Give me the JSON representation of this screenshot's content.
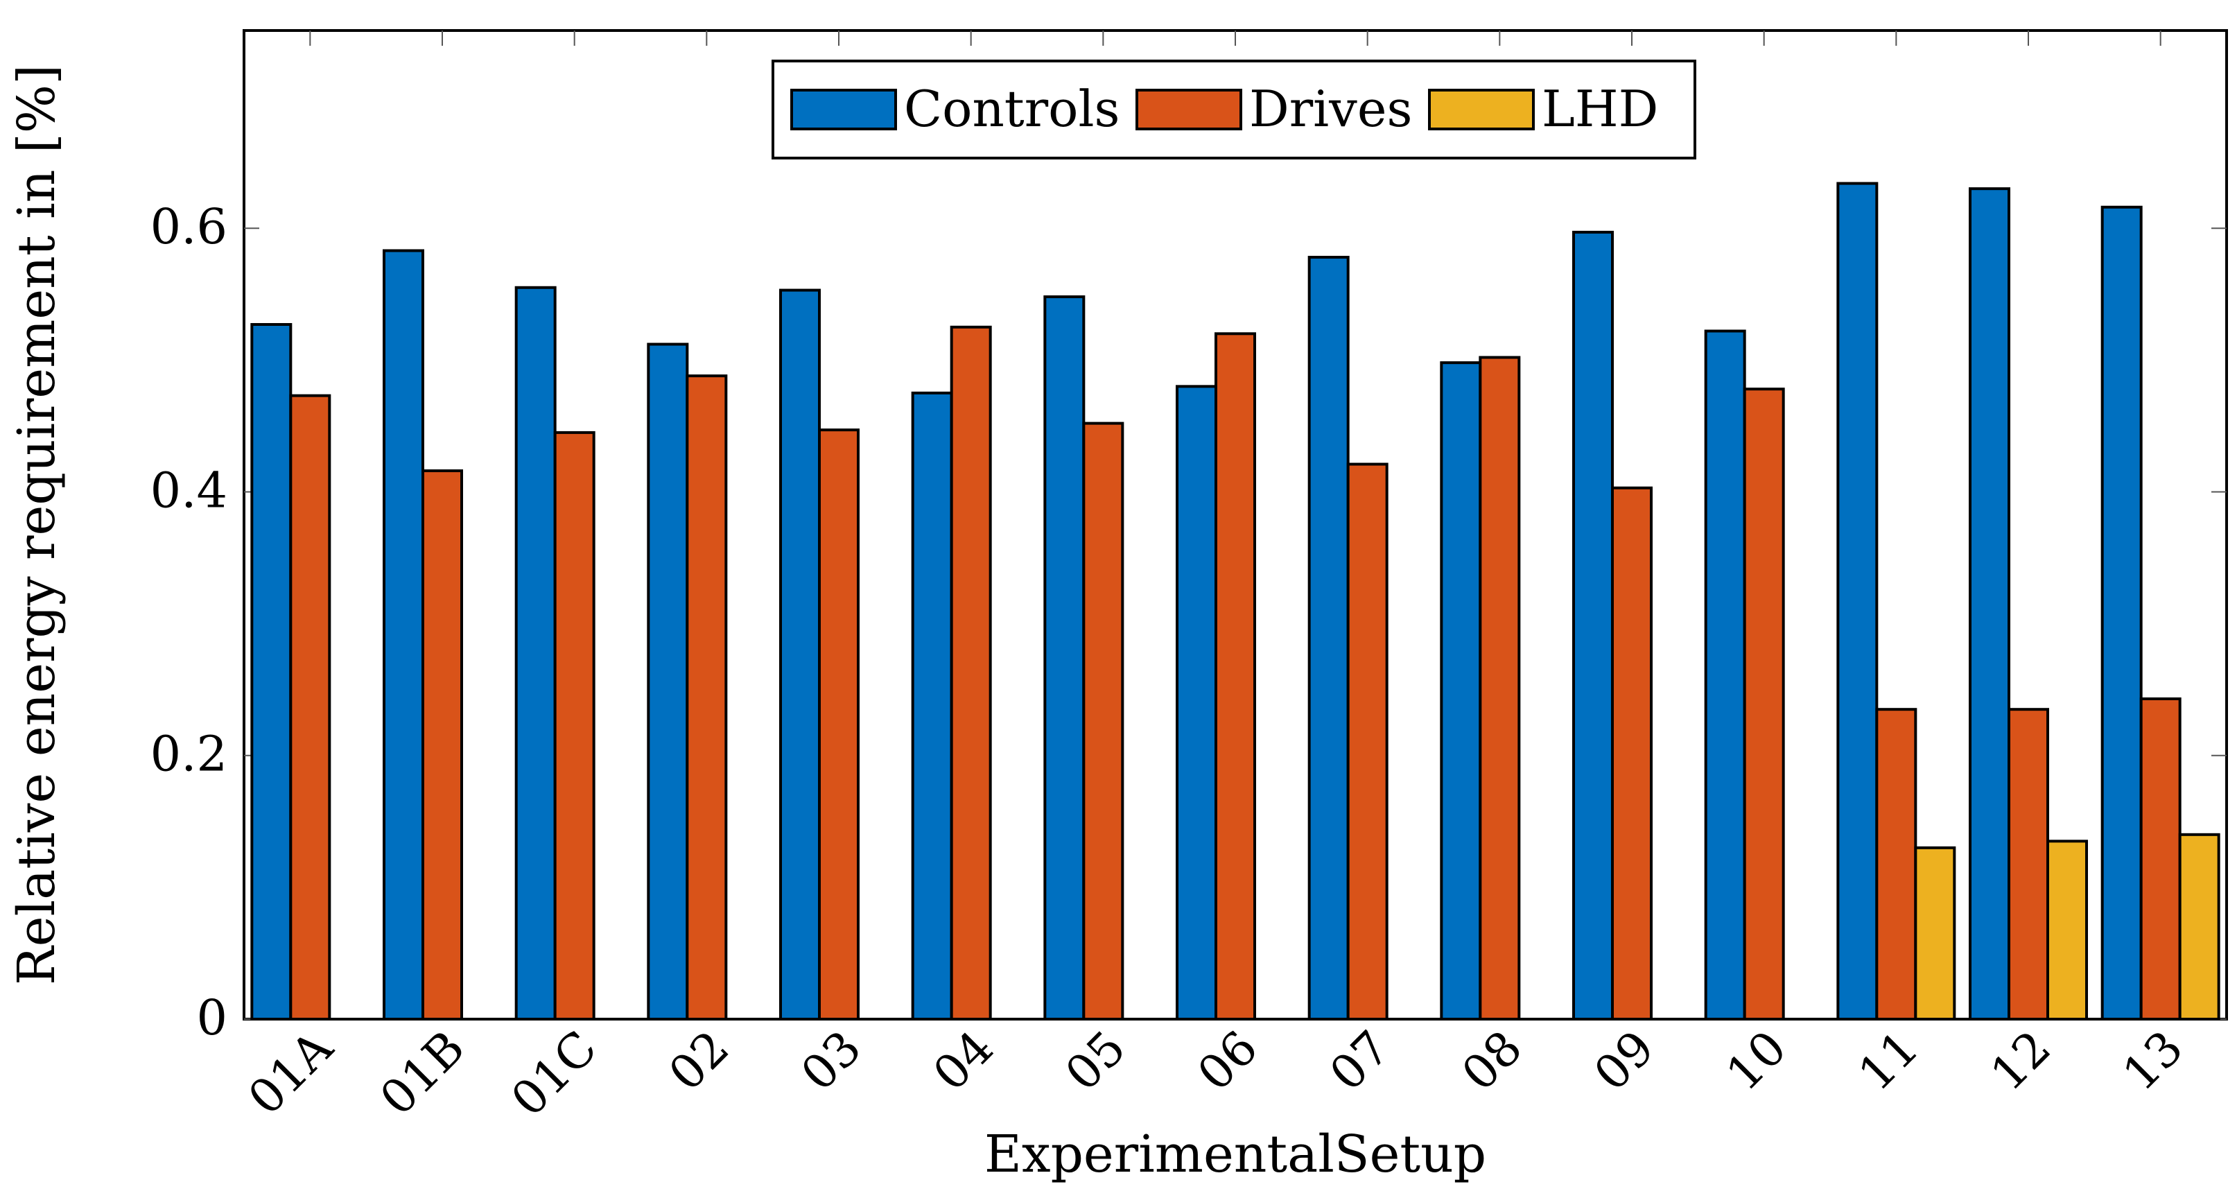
{
  "chart_data": {
    "type": "bar",
    "xlabel": "ExperimentalSetup",
    "ylabel": "Relative energy requirement in [%]",
    "ylim": [
      0,
      0.75
    ],
    "yticks": [
      0,
      0.2,
      0.4,
      0.6
    ],
    "ytick_labels": [
      "0",
      "0.2",
      "0.4",
      "0.6"
    ],
    "categories": [
      "01A",
      "01B",
      "01C",
      "02",
      "03",
      "04",
      "05",
      "06",
      "07",
      "08",
      "09",
      "10",
      "11",
      "12",
      "13"
    ],
    "series": [
      {
        "name": "Controls",
        "color": "#0070c0",
        "values": [
          0.527,
          0.583,
          0.555,
          0.512,
          0.553,
          0.475,
          0.548,
          0.48,
          0.578,
          0.498,
          0.597,
          0.522,
          0.634,
          0.63,
          0.616
        ]
      },
      {
        "name": "Drives",
        "color": "#d95319",
        "values": [
          0.473,
          0.416,
          0.445,
          0.488,
          0.447,
          0.525,
          0.452,
          0.52,
          0.421,
          0.502,
          0.403,
          0.478,
          0.235,
          0.235,
          0.243
        ]
      },
      {
        "name": "LHD",
        "color": "#edb120",
        "values": [
          null,
          null,
          null,
          null,
          null,
          null,
          null,
          null,
          null,
          null,
          null,
          null,
          0.13,
          0.135,
          0.14
        ]
      }
    ],
    "legend_position": "top-center",
    "grid": false
  }
}
